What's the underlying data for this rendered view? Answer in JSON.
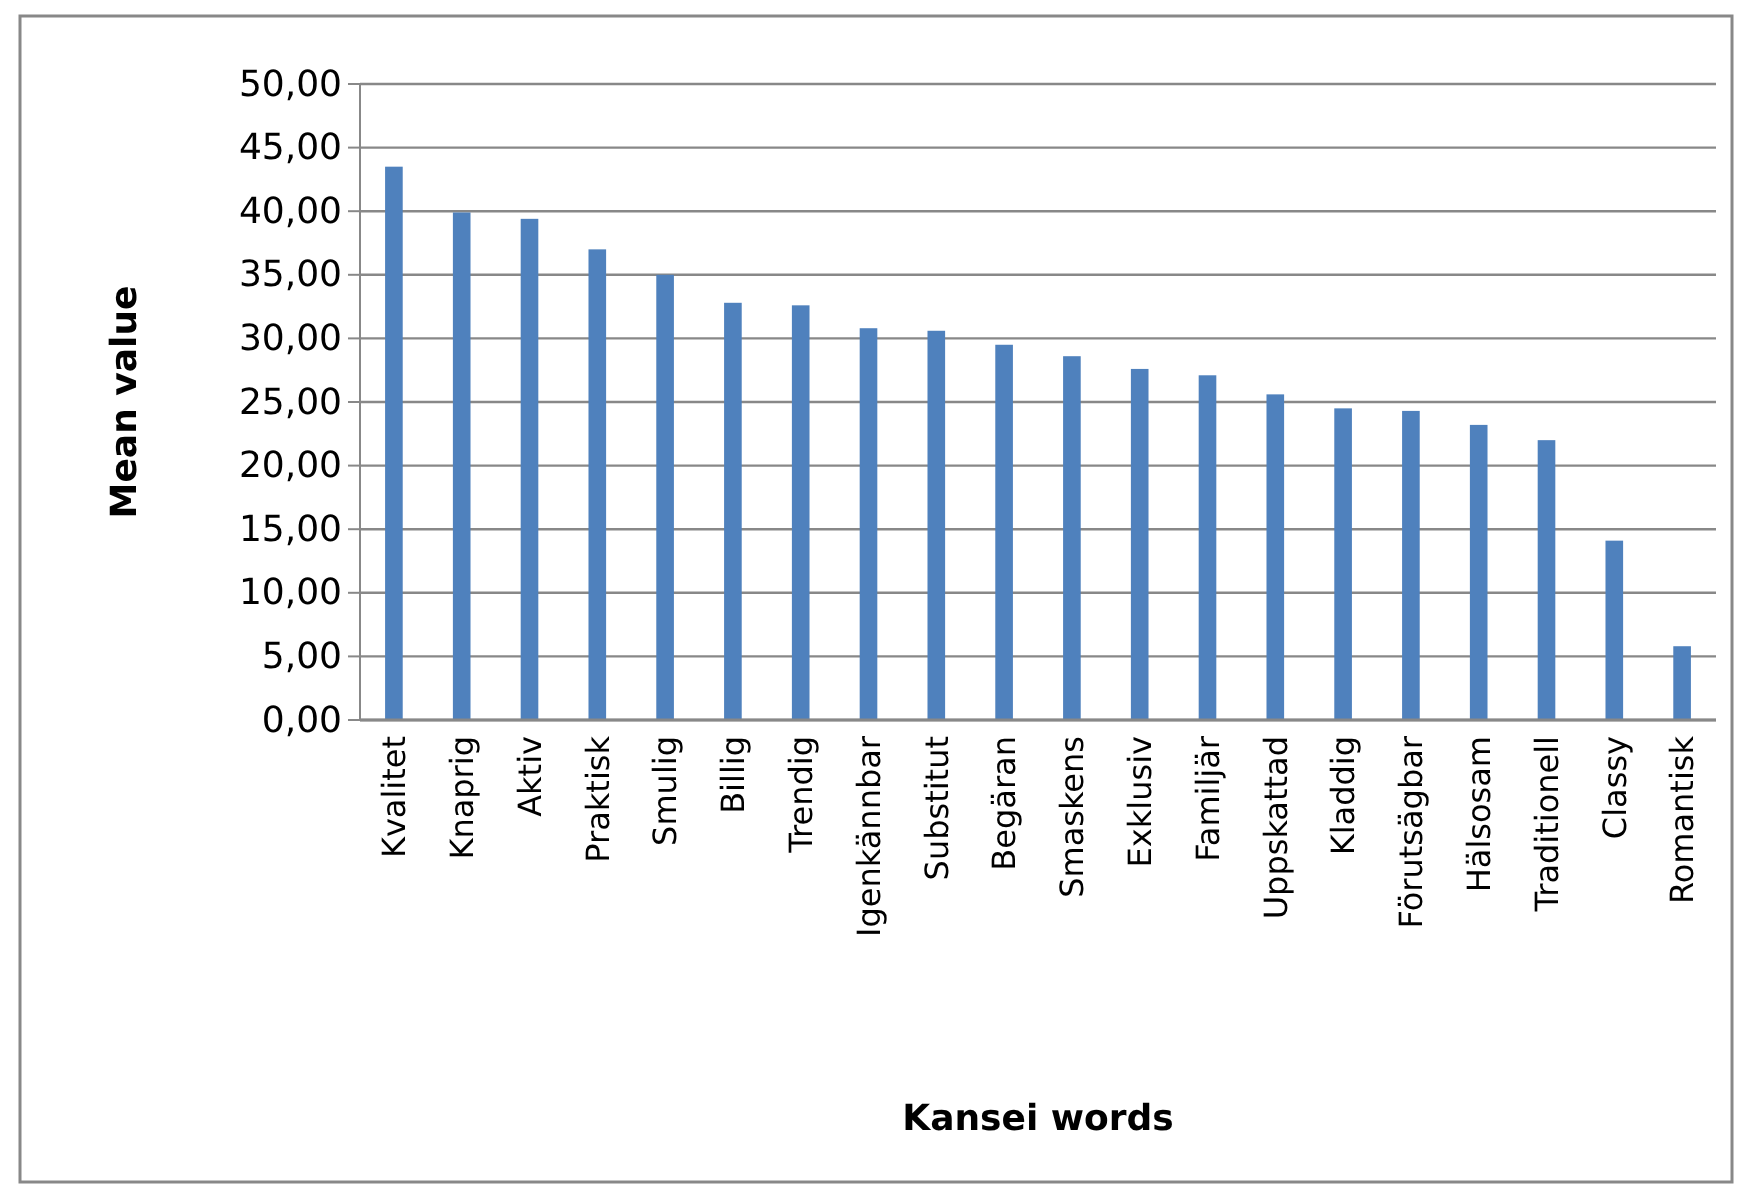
{
  "chart_data": {
    "type": "bar",
    "xlabel": "Kansei words",
    "ylabel": "Mean value",
    "categories": [
      "Kvalitet",
      "Knaprig",
      "Aktiv",
      "Praktisk",
      "Smulig",
      "Billig",
      "Trendig",
      "Igenkännbar",
      "Substitut",
      "Begäran",
      "Smaskens",
      "Exklusiv",
      "Familjär",
      "Uppskattad",
      "Kladdig",
      "Förutsägbar",
      "Hälsosam",
      "Traditionell",
      "Classy",
      "Romantisk"
    ],
    "values": [
      43.5,
      39.9,
      39.4,
      37.0,
      35.0,
      32.8,
      32.6,
      30.8,
      30.6,
      29.5,
      28.6,
      27.6,
      27.1,
      25.6,
      24.5,
      24.3,
      23.2,
      22.0,
      14.1,
      5.8
    ],
    "color": "#4f81bd",
    "ylim": [
      0,
      50
    ],
    "yticks": [
      {
        "value": 0,
        "label": "0,00"
      },
      {
        "value": 5,
        "label": "5,00"
      },
      {
        "value": 10,
        "label": "10,00"
      },
      {
        "value": 15,
        "label": "15,00"
      },
      {
        "value": 20,
        "label": "20,00"
      },
      {
        "value": 25,
        "label": "25,00"
      },
      {
        "value": 30,
        "label": "30,00"
      },
      {
        "value": 35,
        "label": "35,00"
      },
      {
        "value": 40,
        "label": "40,00"
      },
      {
        "value": 45,
        "label": "45,00"
      },
      {
        "value": 50,
        "label": "50,00"
      }
    ],
    "grid": "y"
  }
}
